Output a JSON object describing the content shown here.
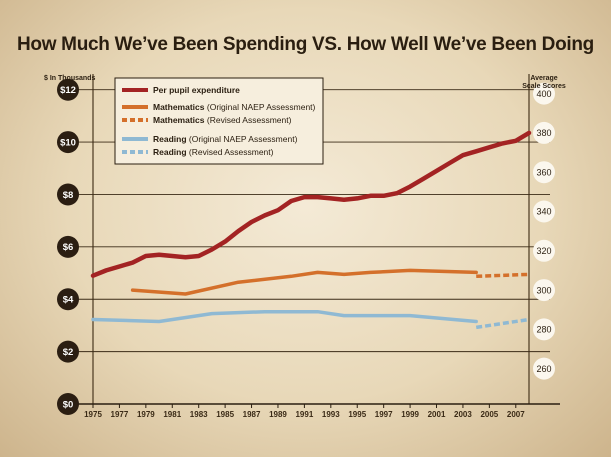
{
  "chart_data": {
    "type": "line",
    "title": "How Much We’ve Been Spending VS. How Well We’ve Been Doing",
    "left_axis": {
      "label": "$ In Thousands",
      "ticks": [
        "$0",
        "$2",
        "$4",
        "$6",
        "$8",
        "$10",
        "$12"
      ],
      "range": [
        0,
        12.6
      ]
    },
    "right_axis": {
      "label_line1": "Average",
      "label_line2": "Scale Scores",
      "ticks": [
        "260",
        "280",
        "300",
        "320",
        "340",
        "360",
        "380",
        "400"
      ],
      "range": [
        242,
        410
      ]
    },
    "x_ticks": [
      "1975",
      "1977",
      "1979",
      "1981",
      "1983",
      "1985",
      "1987",
      "1989",
      "1991",
      "1993",
      "1995",
      "1997",
      "1999",
      "2001",
      "2003",
      "2005",
      "2007"
    ],
    "x_range": [
      1975,
      2008
    ],
    "legend_placement": "top-left",
    "colors": {
      "spending": "#a32323",
      "math": "#d4702b",
      "reading": "#8fb9d3"
    },
    "series": [
      {
        "name": "Per pupil expenditure",
        "legend_note": "",
        "axis": "left",
        "style": "solid",
        "points": [
          [
            1975,
            4.9
          ],
          [
            1976,
            5.1
          ],
          [
            1977,
            5.25
          ],
          [
            1978,
            5.4
          ],
          [
            1979,
            5.65
          ],
          [
            1980,
            5.7
          ],
          [
            1981,
            5.65
          ],
          [
            1982,
            5.6
          ],
          [
            1983,
            5.65
          ],
          [
            1984,
            5.9
          ],
          [
            1985,
            6.2
          ],
          [
            1986,
            6.6
          ],
          [
            1987,
            6.95
          ],
          [
            1988,
            7.2
          ],
          [
            1989,
            7.4
          ],
          [
            1990,
            7.75
          ],
          [
            1991,
            7.9
          ],
          [
            1992,
            7.9
          ],
          [
            1993,
            7.85
          ],
          [
            1994,
            7.8
          ],
          [
            1995,
            7.85
          ],
          [
            1996,
            7.95
          ],
          [
            1997,
            7.95
          ],
          [
            1998,
            8.05
          ],
          [
            1999,
            8.3
          ],
          [
            2000,
            8.6
          ],
          [
            2001,
            8.9
          ],
          [
            2002,
            9.2
          ],
          [
            2003,
            9.5
          ],
          [
            2004,
            9.65
          ],
          [
            2005,
            9.8
          ],
          [
            2006,
            9.95
          ],
          [
            2007,
            10.05
          ],
          [
            2008,
            10.35
          ]
        ]
      },
      {
        "name": "Mathematics",
        "legend_note": "(Original NAEP Assessment)",
        "axis": "right",
        "style": "solid",
        "points": [
          [
            1978,
            300
          ],
          [
            1982,
            298
          ],
          [
            1986,
            304
          ],
          [
            1990,
            307
          ],
          [
            1992,
            309
          ],
          [
            1994,
            308
          ],
          [
            1996,
            309
          ],
          [
            1999,
            310
          ],
          [
            2004,
            309
          ]
        ]
      },
      {
        "name": "Mathematics",
        "legend_note": "(Revised Assessment)",
        "axis": "right",
        "style": "dashed",
        "points": [
          [
            2004,
            307
          ],
          [
            2008,
            308
          ]
        ]
      },
      {
        "name": "Reading",
        "legend_note": "(Original NAEP Assessment)",
        "axis": "right",
        "style": "solid",
        "points": [
          [
            1975,
            285
          ],
          [
            1980,
            284
          ],
          [
            1984,
            288
          ],
          [
            1988,
            289
          ],
          [
            1992,
            289
          ],
          [
            1994,
            287
          ],
          [
            1999,
            287
          ],
          [
            2004,
            284
          ]
        ]
      },
      {
        "name": "Reading",
        "legend_note": "(Revised Assessment)",
        "axis": "right",
        "style": "dashed",
        "points": [
          [
            2004,
            281
          ],
          [
            2008,
            285
          ]
        ]
      }
    ]
  }
}
